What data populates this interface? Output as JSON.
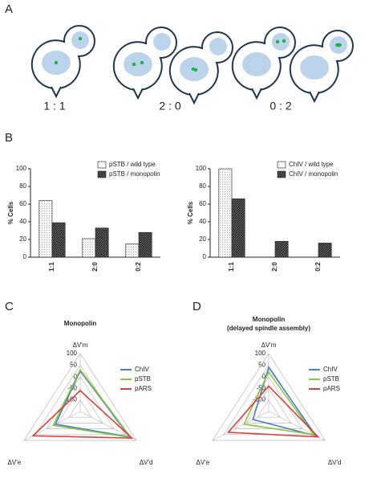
{
  "panel_labels": [
    "A",
    "B",
    "C",
    "D"
  ],
  "diagram": {
    "ratios": [
      "1 : 1",
      "2 : 0",
      "0 : 2"
    ]
  },
  "chart_data": [
    {
      "type": "bar",
      "ylabel": "% Cells",
      "categories": [
        "1:1",
        "2:0",
        "0:2"
      ],
      "series": [
        {
          "name": "pSTB / wild type",
          "color": "#f4f4f4",
          "values": [
            64,
            21,
            15
          ]
        },
        {
          "name": "pSTB / monopolin",
          "color": "#555555",
          "values": [
            39,
            33,
            28
          ]
        }
      ],
      "ylim": [
        0,
        100
      ],
      "yticks": [
        0,
        20,
        40,
        60,
        80,
        100
      ],
      "legend": "upper right"
    },
    {
      "type": "bar",
      "ylabel": "% Cells",
      "categories": [
        "1:1",
        "2:0",
        "0:2"
      ],
      "series": [
        {
          "name": "ChIV / wild type",
          "color": "#f4f4f4",
          "values": [
            100,
            0,
            0
          ]
        },
        {
          "name": "ChIV / monopolin",
          "color": "#555555",
          "values": [
            66,
            18,
            16
          ]
        }
      ],
      "ylim": [
        0,
        100
      ],
      "yticks": [
        0,
        20,
        40,
        60,
        80,
        100
      ],
      "legend": "upper right"
    },
    {
      "type": "radar",
      "title": [
        "Monopolin"
      ],
      "axes": [
        "ΔV'm",
        "ΔV'd",
        "ΔV'e"
      ],
      "rlim": [
        -150,
        100
      ],
      "rticks": [
        -100,
        -50,
        0,
        50,
        100
      ],
      "series": [
        {
          "name": "ChIV",
          "color": "#4a7fc9",
          "values": [
            25,
            70,
            -40
          ]
        },
        {
          "name": "pSTB",
          "color": "#8cc43f",
          "values": [
            30,
            75,
            -30
          ]
        },
        {
          "name": "pARS",
          "color": "#d9413b",
          "values": [
            -60,
            80,
            60
          ]
        }
      ]
    },
    {
      "type": "radar",
      "title": [
        "Monopolin",
        "(delayed spindle assembly)"
      ],
      "axes": [
        "ΔV'm",
        "ΔV'd",
        "ΔV'e"
      ],
      "rlim": [
        -150,
        100
      ],
      "rticks": [
        -100,
        -50,
        0,
        50,
        100
      ],
      "series": [
        {
          "name": "ChIV",
          "color": "#4a7fc9",
          "values": [
            40,
            60,
            -80
          ]
        },
        {
          "name": "pSTB",
          "color": "#8cc43f",
          "values": [
            20,
            50,
            -40
          ]
        },
        {
          "name": "pARS",
          "color": "#d9413b",
          "values": [
            -40,
            70,
            30
          ]
        }
      ]
    }
  ]
}
